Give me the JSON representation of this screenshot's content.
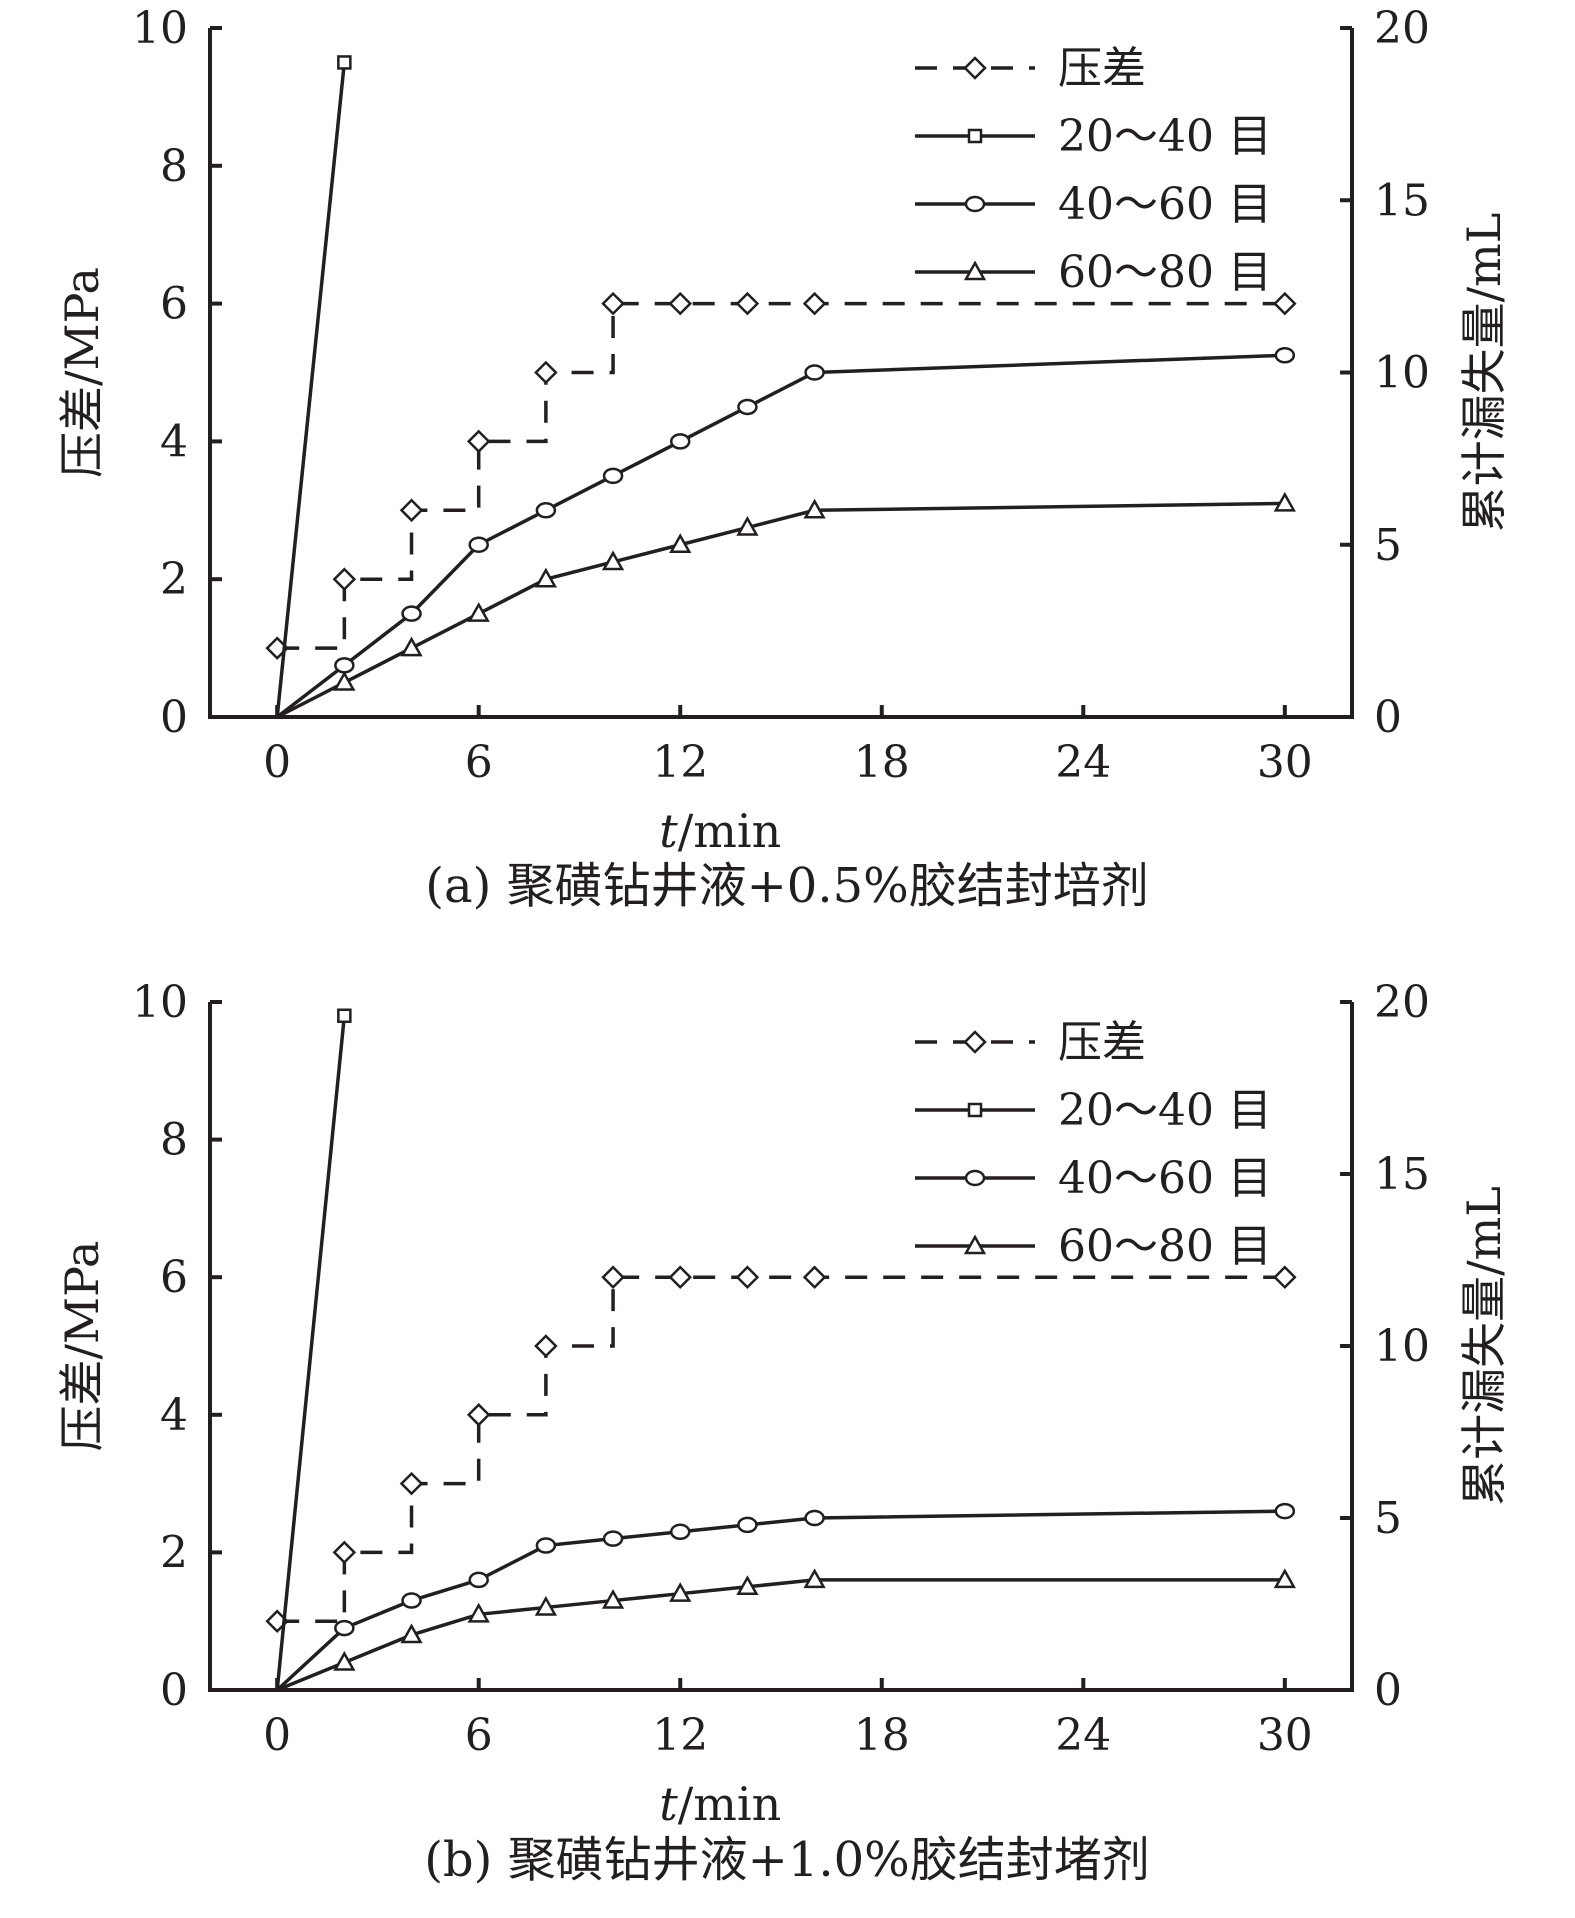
{
  "chart_data": [
    {
      "type": "line",
      "caption": "(a) 聚磺钻井液+0.5%胶结封培剂",
      "xlabel_italic": "t",
      "xlabel_rest": "/min",
      "ylabel_left": "压差/MPa",
      "ylabel_right": "累计漏失量/mL",
      "xlim": [
        -2,
        32
      ],
      "ylim_left": [
        0,
        10
      ],
      "ylim_right": [
        0,
        20
      ],
      "x_ticks": [
        "0",
        "6",
        "12",
        "18",
        "24",
        "30"
      ],
      "y_left_ticks": [
        "0",
        "2",
        "4",
        "6",
        "8",
        "10"
      ],
      "y_right_ticks": [
        "0",
        "5",
        "10",
        "15",
        "20"
      ],
      "legend_position": "top-right",
      "series": [
        {
          "name": "压差",
          "axis": "left",
          "style": "dashed-step",
          "marker": "diamond",
          "x": [
            0,
            2,
            4,
            6,
            8,
            10,
            12,
            14,
            16,
            30
          ],
          "y": [
            1,
            2,
            3,
            4,
            5,
            6,
            6,
            6,
            6,
            6
          ]
        },
        {
          "name": "20～40 目",
          "axis": "right",
          "style": "solid",
          "marker": "square",
          "x": [
            0,
            2
          ],
          "y": [
            0,
            19
          ]
        },
        {
          "name": "40～60 目",
          "axis": "right",
          "style": "solid",
          "marker": "circle",
          "x": [
            0,
            2,
            4,
            6,
            8,
            10,
            12,
            14,
            16,
            30
          ],
          "y": [
            0,
            1.5,
            3,
            5,
            6,
            7,
            8,
            9,
            10,
            10.5
          ]
        },
        {
          "name": "60～80 目",
          "axis": "right",
          "style": "solid",
          "marker": "triangle",
          "x": [
            0,
            2,
            4,
            6,
            8,
            10,
            12,
            14,
            16,
            30
          ],
          "y": [
            0,
            1,
            2,
            3,
            4,
            4.5,
            5,
            5.5,
            6,
            6.2
          ]
        }
      ]
    },
    {
      "type": "line",
      "caption": "(b) 聚磺钻井液+1.0%胶结封堵剂",
      "xlabel_italic": "t",
      "xlabel_rest": "/min",
      "ylabel_left": "压差/MPa",
      "ylabel_right": "累计漏失量/mL",
      "xlim": [
        -2,
        32
      ],
      "ylim_left": [
        0,
        10
      ],
      "ylim_right": [
        0,
        20
      ],
      "x_ticks": [
        "0",
        "6",
        "12",
        "18",
        "24",
        "30"
      ],
      "y_left_ticks": [
        "0",
        "2",
        "4",
        "6",
        "8",
        "10"
      ],
      "y_right_ticks": [
        "0",
        "5",
        "10",
        "15",
        "20"
      ],
      "legend_position": "top-right",
      "series": [
        {
          "name": "压差",
          "axis": "left",
          "style": "dashed-step",
          "marker": "diamond",
          "x": [
            0,
            2,
            4,
            6,
            8,
            10,
            12,
            14,
            16,
            30
          ],
          "y": [
            1,
            2,
            3,
            4,
            5,
            6,
            6,
            6,
            6,
            6
          ]
        },
        {
          "name": "20～40 目",
          "axis": "right",
          "style": "solid",
          "marker": "square",
          "x": [
            0,
            2
          ],
          "y": [
            0,
            19.6
          ]
        },
        {
          "name": "40～60 目",
          "axis": "right",
          "style": "solid",
          "marker": "circle",
          "x": [
            0,
            2,
            4,
            6,
            8,
            10,
            12,
            14,
            16,
            30
          ],
          "y": [
            0,
            1.8,
            2.6,
            3.2,
            4.2,
            4.4,
            4.6,
            4.8,
            5,
            5.2
          ]
        },
        {
          "name": "60～80 目",
          "axis": "right",
          "style": "solid",
          "marker": "triangle",
          "x": [
            0,
            2,
            4,
            6,
            8,
            10,
            12,
            14,
            16,
            30
          ],
          "y": [
            0,
            0.8,
            1.6,
            2.2,
            2.4,
            2.6,
            2.8,
            3,
            3.2,
            3.2
          ]
        }
      ]
    }
  ]
}
